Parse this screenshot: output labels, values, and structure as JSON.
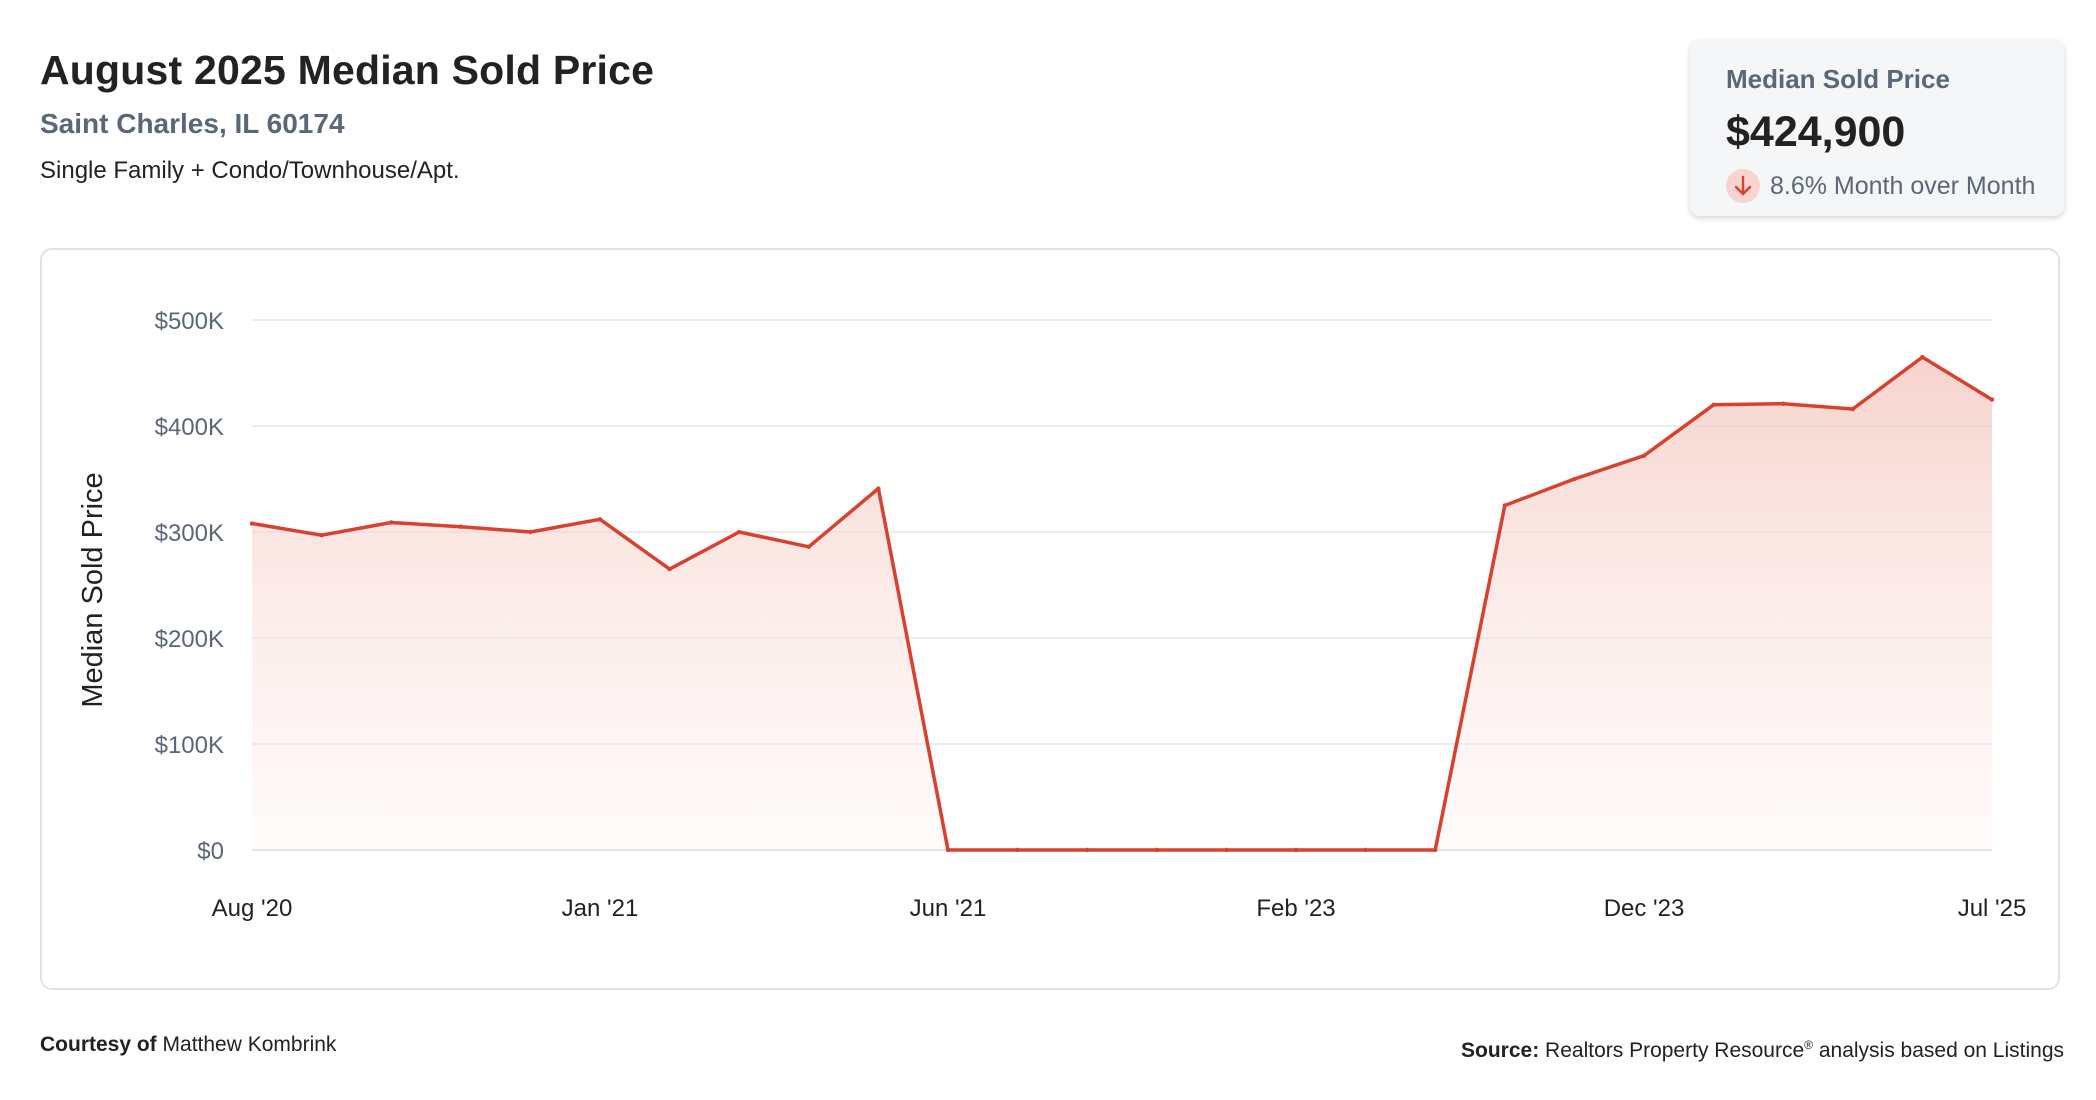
{
  "header": {
    "title": "August 2025 Median Sold Price",
    "location": "Saint Charles, IL 60174",
    "property_types": "Single Family + Condo/Townhouse/Apt."
  },
  "stat_card": {
    "label": "Median Sold Price",
    "value": "$424,900",
    "change": "8.6% Month over Month",
    "direction": "down",
    "icon": "arrow-down-icon"
  },
  "colors": {
    "line": "#d9412f",
    "fill_top": "#f6d2cc",
    "grid": "#e3e6ea",
    "muted_text": "#5b6679",
    "badge_bg": "#f8d3cf"
  },
  "footer": {
    "courtesy_label": "Courtesy of",
    "courtesy_name": "Matthew Kombrink",
    "source_label": "Source:",
    "source_text": "Realtors Property Resource",
    "source_mark": "®",
    "source_suffix": "analysis based on Listings"
  },
  "chart_data": {
    "type": "area",
    "title": "",
    "xlabel": "",
    "ylabel": "Median Sold Price",
    "ylim": [
      0,
      500000
    ],
    "yticks": [
      0,
      100000,
      200000,
      300000,
      400000,
      500000
    ],
    "ytick_labels": [
      "$0",
      "$100K",
      "$200K",
      "$300K",
      "$400K",
      "$500K"
    ],
    "xtick_labels": [
      {
        "index": 0,
        "label": "Aug '20"
      },
      {
        "index": 5,
        "label": "Jan '21"
      },
      {
        "index": 10,
        "label": "Jun '21"
      },
      {
        "index": 15,
        "label": "Feb '23"
      },
      {
        "index": 20,
        "label": "Dec '23"
      },
      {
        "index": 25,
        "label": "Jul '25"
      }
    ],
    "grid": true,
    "legend": "none",
    "series": [
      {
        "values": [
          308000,
          297000,
          309000,
          305000,
          300000,
          312000,
          265000,
          300000,
          286000,
          341000,
          0,
          0,
          0,
          0,
          0,
          0,
          0,
          0,
          325000,
          350000,
          372000,
          420000,
          421000,
          416000,
          465000,
          424900
        ]
      }
    ]
  }
}
